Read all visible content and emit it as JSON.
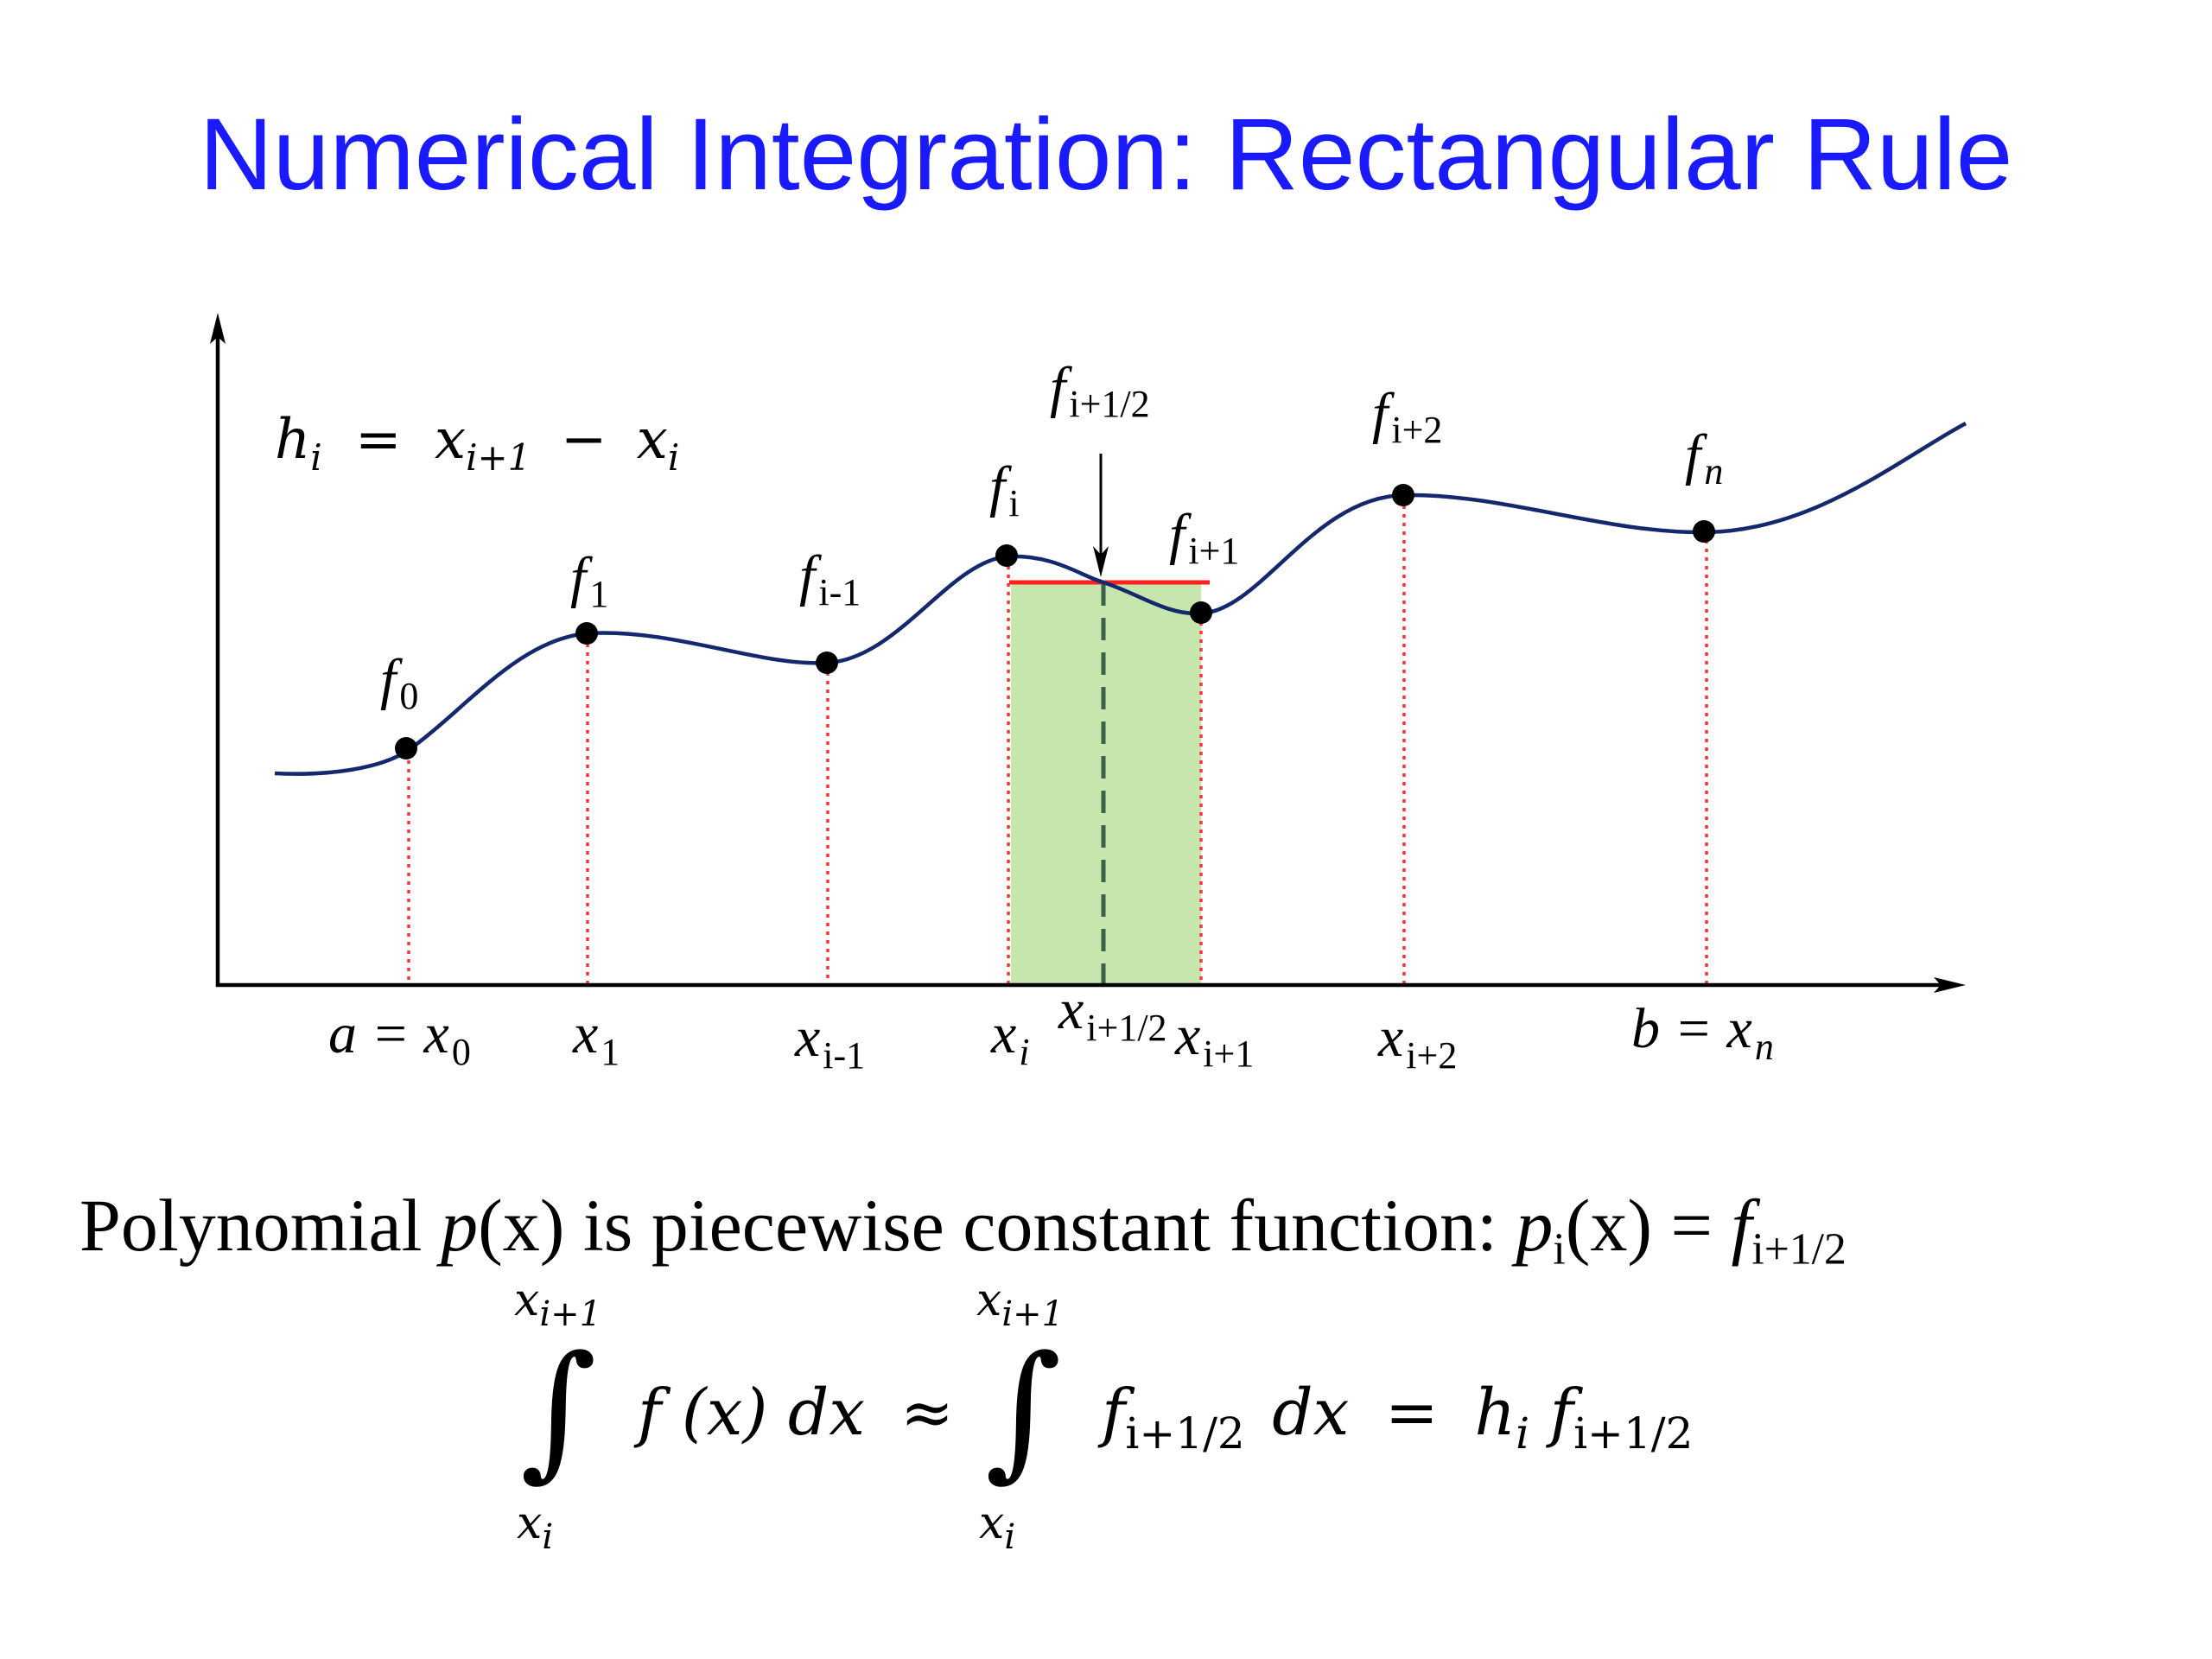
{
  "title": "Numerical Integration: Rectangular Rule",
  "colors": {
    "title": "#1a1aff",
    "curve": "#14286e",
    "highlight_fill": "#c7e6ad",
    "rect_top": "#ff2020",
    "dotted_lines": "#ff3333",
    "midpoint_line": "#3c6048"
  },
  "step_formula": {
    "h": "h",
    "h_sub": "i",
    "eq": "=",
    "x1": "x",
    "x1_sub": "i+1",
    "minus": "−",
    "x2": "x",
    "x2_sub": "i"
  },
  "point_labels": [
    {
      "base": "f",
      "sub": "0"
    },
    {
      "base": "f",
      "sub": "1"
    },
    {
      "base": "f",
      "sub": "i-1"
    },
    {
      "base": "f",
      "sub": "i"
    },
    {
      "base": "f",
      "sub": "i+1/2"
    },
    {
      "base": "f",
      "sub": "i+1"
    },
    {
      "base": "f",
      "sub": "i+2"
    },
    {
      "base": "f",
      "sub": "n"
    }
  ],
  "axis_labels": [
    {
      "pre": "a = ",
      "base": "x",
      "sub": "0"
    },
    {
      "pre": "",
      "base": "x",
      "sub": "1"
    },
    {
      "pre": "",
      "base": "x",
      "sub": "i-1"
    },
    {
      "pre": "",
      "base": "x",
      "sub": "i"
    },
    {
      "pre": "",
      "base": "x",
      "sub": "i+1/2"
    },
    {
      "pre": "",
      "base": "x",
      "sub": "i+1"
    },
    {
      "pre": "",
      "base": "x",
      "sub": "i+2"
    },
    {
      "pre": "b = ",
      "base": "x",
      "sub": "n"
    }
  ],
  "caption": {
    "text1": "Polynomial ",
    "p": "p",
    "px": "(x)",
    "text2": " is piecewise constant function: ",
    "pi": "p",
    "pi_sub": "i",
    "pix": "(x)",
    "eq": " = ",
    "f": "f",
    "f_sub": "i+1/2"
  },
  "integral": {
    "upper1": "x",
    "upper1_sub": "i+1",
    "lower1": "x",
    "lower1_sub": "i",
    "integrand1": "f (x) dx",
    "approx": "≈",
    "upper2": "x",
    "upper2_sub": "i+1",
    "lower2": "x",
    "lower2_sub": "i",
    "integrand2_f": "f",
    "integrand2_sub": "i+1/2",
    "integrand2_dx": "dx",
    "eq": "=",
    "rhs_h": "h",
    "rhs_h_sub": "i",
    "rhs_f": "f",
    "rhs_f_sub": "i+1/2"
  }
}
